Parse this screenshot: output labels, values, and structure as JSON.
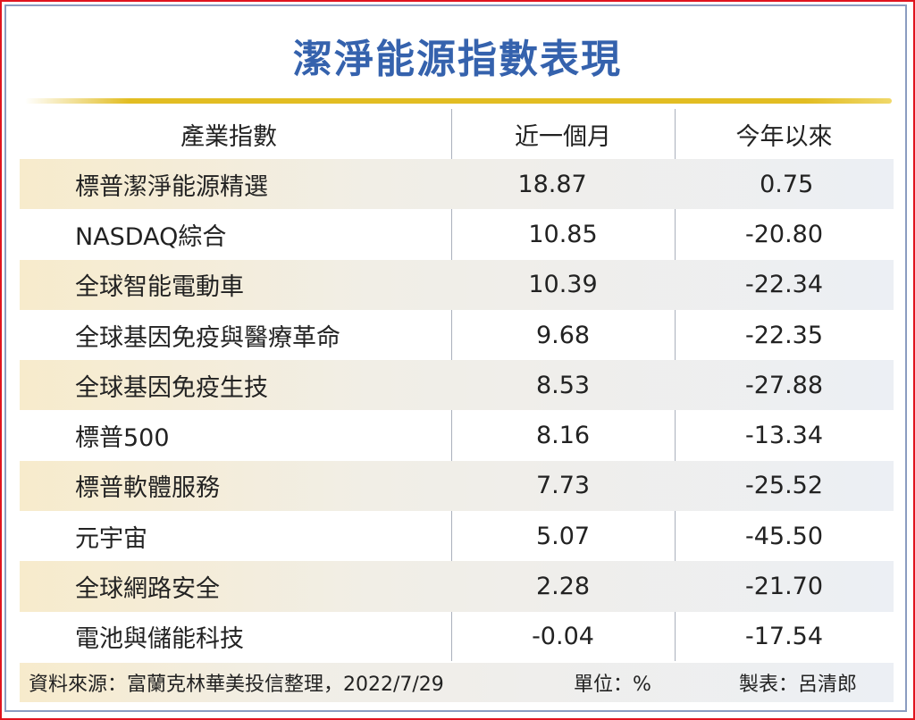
{
  "title": "潔淨能源指數表現",
  "chart_data": {
    "type": "table",
    "title": "潔淨能源指數表現",
    "columns": [
      "產業指數",
      "近一個月",
      "今年以來"
    ],
    "rows": [
      [
        "標普潔淨能源精選",
        "18.87",
        "0.75"
      ],
      [
        "NASDAQ綜合",
        "10.85",
        "-20.80"
      ],
      [
        "全球智能電動車",
        "10.39",
        "-22.34"
      ],
      [
        "全球基因免疫與醫療革命",
        "9.68",
        "-22.35"
      ],
      [
        "全球基因免疫生技",
        "8.53",
        "-27.88"
      ],
      [
        "標普500",
        "8.16",
        "-13.34"
      ],
      [
        "標普軟體服務",
        "7.73",
        "-25.52"
      ],
      [
        "元宇宙",
        "5.07",
        "-45.50"
      ],
      [
        "全球網路安全",
        "2.28",
        "-21.70"
      ],
      [
        "電池與儲能科技",
        "-0.04",
        "-17.54"
      ]
    ]
  },
  "footer": {
    "source": "資料來源：富蘭克林華美投信整理，2022/7/29",
    "unit": "單位：%",
    "author": "製表：呂清郎"
  },
  "colors": {
    "title": "#3562ad",
    "accent_line": "#e2bd22",
    "border": "#e0141e"
  }
}
